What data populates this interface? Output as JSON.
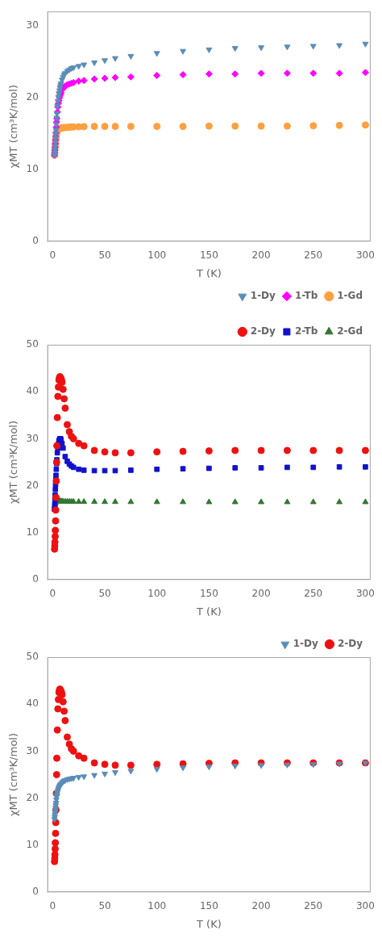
{
  "chart_data": [
    {
      "type": "scatter",
      "xlabel": "T (K)",
      "ylabel": "χMT (cm³K/mol)",
      "xlim": [
        -5,
        305
      ],
      "ylim": [
        0,
        32
      ],
      "xticks": [
        0,
        50,
        100,
        150,
        200,
        250,
        300
      ],
      "yticks": [
        0,
        10,
        20,
        30
      ],
      "grid": false,
      "legend": "lower right",
      "series": [
        {
          "name": "1-Dy",
          "color": "#5B8DB8",
          "marker": "triangle_down",
          "x": [
            1.8,
            2.0,
            2.2,
            2.4,
            2.6,
            2.8,
            3.0,
            3.2,
            3.5,
            3.8,
            4.0,
            4.5,
            5.0,
            5.5,
            6.0,
            6.5,
            7.0,
            7.5,
            8.0,
            9.0,
            10.0,
            11.0,
            12.0,
            14.0,
            16.0,
            18.0,
            20.0,
            25.0,
            30.0,
            40.0,
            50.0,
            60.0,
            75.0,
            100.0,
            125.0,
            150.0,
            175.0,
            200.0,
            225.0,
            250.0,
            275.0,
            300.0
          ],
          "values": [
            12.0,
            12.3,
            12.7,
            13.2,
            13.8,
            14.4,
            15.0,
            15.5,
            16.3,
            17.2,
            17.8,
            18.8,
            19.5,
            20.1,
            20.6,
            21.0,
            21.4,
            21.7,
            22.0,
            22.5,
            22.9,
            23.2,
            23.4,
            23.7,
            23.9,
            24.1,
            24.2,
            24.4,
            24.6,
            24.9,
            25.2,
            25.5,
            25.8,
            26.2,
            26.5,
            26.7,
            26.9,
            27.0,
            27.1,
            27.2,
            27.3,
            27.5
          ]
        },
        {
          "name": "1-Tb",
          "color": "#FF00FF",
          "marker": "diamond",
          "x": [
            1.8,
            2.0,
            2.2,
            2.4,
            2.6,
            2.8,
            3.0,
            3.2,
            3.5,
            3.8,
            4.0,
            4.5,
            5.0,
            5.5,
            6.0,
            6.5,
            7.0,
            7.5,
            8.0,
            9.0,
            10.0,
            11.0,
            12.0,
            14.0,
            16.0,
            18.0,
            20.0,
            25.0,
            30.0,
            40.0,
            50.0,
            60.0,
            75.0,
            100.0,
            125.0,
            150.0,
            175.0,
            200.0,
            225.0,
            250.0,
            275.0,
            300.0
          ],
          "values": [
            12.0,
            12.3,
            12.7,
            13.1,
            13.6,
            14.1,
            14.6,
            15.1,
            15.9,
            16.6,
            17.1,
            18.0,
            18.7,
            19.2,
            19.6,
            20.0,
            20.3,
            20.5,
            20.7,
            21.1,
            21.3,
            21.5,
            21.6,
            21.8,
            21.9,
            22.0,
            22.1,
            22.3,
            22.4,
            22.6,
            22.7,
            22.8,
            22.9,
            23.1,
            23.2,
            23.3,
            23.3,
            23.4,
            23.4,
            23.4,
            23.4,
            23.5
          ]
        },
        {
          "name": "1-Gd",
          "color": "#FFA040",
          "marker": "circle",
          "x": [
            1.8,
            2.0,
            2.2,
            2.4,
            2.6,
            2.8,
            3.0,
            3.2,
            3.5,
            3.8,
            4.0,
            4.5,
            5.0,
            5.5,
            6.0,
            6.5,
            7.0,
            7.5,
            8.0,
            9.0,
            10.0,
            11.0,
            12.0,
            14.0,
            16.0,
            18.0,
            20.0,
            25.0,
            30.0,
            40.0,
            50.0,
            60.0,
            75.0,
            100.0,
            125.0,
            150.0,
            175.0,
            200.0,
            225.0,
            250.0,
            275.0,
            300.0
          ],
          "values": [
            12.0,
            12.3,
            12.7,
            13.1,
            13.5,
            13.9,
            14.2,
            14.5,
            14.9,
            15.1,
            15.2,
            15.4,
            15.5,
            15.6,
            15.65,
            15.7,
            15.72,
            15.75,
            15.77,
            15.8,
            15.82,
            15.84,
            15.85,
            15.87,
            15.9,
            15.92,
            15.93,
            15.95,
            15.97,
            16.0,
            16.0,
            16.0,
            16.0,
            16.0,
            16.0,
            16.05,
            16.05,
            16.05,
            16.05,
            16.1,
            16.15,
            16.2
          ]
        }
      ]
    },
    {
      "type": "scatter",
      "xlabel": "T (K)",
      "ylabel": "χMT (cm³K/mol)",
      "xlim": [
        -5,
        305
      ],
      "ylim": [
        0,
        50
      ],
      "xticks": [
        0,
        50,
        100,
        150,
        200,
        250,
        300
      ],
      "yticks": [
        0,
        10,
        20,
        30,
        40,
        50
      ],
      "grid": false,
      "legend": "upper right",
      "series": [
        {
          "name": "2-Dy",
          "color": "#EE1111",
          "marker": "circle",
          "x": [
            1.8,
            2.0,
            2.2,
            2.4,
            2.6,
            2.8,
            3.0,
            3.2,
            3.5,
            3.8,
            4.0,
            4.5,
            5.0,
            5.5,
            6.0,
            6.5,
            7.0,
            7.5,
            8.0,
            8.5,
            9.0,
            10.0,
            11.0,
            12.0,
            14.0,
            16.0,
            18.0,
            20.0,
            25.0,
            30.0,
            40.0,
            50.0,
            60.0,
            75.0,
            100.0,
            125.0,
            150.0,
            175.0,
            200.0,
            225.0,
            250.0,
            275.0,
            300.0
          ],
          "values": [
            6.5,
            7.2,
            8.0,
            9.2,
            10.5,
            12.5,
            14.8,
            17.5,
            21.0,
            25.0,
            28.5,
            34.5,
            39.0,
            41.0,
            42.5,
            43.0,
            43.2,
            43.0,
            42.8,
            42.5,
            42.0,
            40.5,
            38.5,
            36.5,
            33.0,
            31.5,
            30.5,
            30.0,
            29.0,
            28.5,
            27.5,
            27.2,
            27.0,
            27.0,
            27.2,
            27.3,
            27.4,
            27.5,
            27.5,
            27.5,
            27.5,
            27.5,
            27.5
          ]
        },
        {
          "name": "2-Tb",
          "color": "#1111CC",
          "marker": "square",
          "x": [
            1.8,
            2.0,
            2.2,
            2.4,
            2.6,
            2.8,
            3.0,
            3.2,
            3.5,
            3.8,
            4.0,
            4.5,
            5.0,
            5.5,
            6.0,
            6.5,
            7.0,
            7.5,
            8.0,
            9.0,
            10.0,
            12.0,
            14.0,
            16.0,
            18.0,
            20.0,
            25.0,
            30.0,
            40.0,
            50.0,
            60.0,
            75.0,
            100.0,
            125.0,
            150.0,
            175.0,
            200.0,
            225.0,
            250.0,
            275.0,
            300.0
          ],
          "values": [
            15.0,
            16.0,
            17.0,
            18.0,
            19.2,
            20.2,
            21.2,
            22.2,
            23.5,
            24.7,
            25.5,
            27.0,
            28.0,
            28.8,
            29.5,
            29.8,
            30.0,
            30.0,
            29.8,
            29.0,
            28.0,
            26.2,
            25.2,
            24.6,
            24.2,
            23.9,
            23.5,
            23.3,
            23.2,
            23.2,
            23.2,
            23.3,
            23.5,
            23.6,
            23.7,
            23.8,
            23.8,
            23.9,
            23.9,
            24.0,
            24.0
          ]
        },
        {
          "name": "2-Gd",
          "color": "#337733",
          "marker": "triangle_up",
          "x": [
            1.8,
            2.0,
            2.2,
            2.4,
            2.6,
            2.8,
            3.0,
            3.2,
            3.5,
            3.8,
            4.0,
            4.5,
            5.0,
            5.5,
            6.0,
            6.5,
            7.0,
            7.5,
            8.0,
            9.0,
            10.0,
            12.0,
            14.0,
            16.0,
            18.0,
            20.0,
            25.0,
            30.0,
            40.0,
            50.0,
            60.0,
            75.0,
            100.0,
            125.0,
            150.0,
            175.0,
            200.0,
            225.0,
            250.0,
            275.0,
            300.0
          ],
          "values": [
            15.0,
            15.5,
            15.9,
            16.2,
            16.4,
            16.5,
            16.6,
            16.65,
            16.7,
            16.72,
            16.73,
            16.73,
            16.72,
            16.71,
            16.7,
            16.7,
            16.7,
            16.7,
            16.68,
            16.67,
            16.65,
            16.63,
            16.62,
            16.61,
            16.6,
            16.6,
            16.58,
            16.57,
            16.56,
            16.55,
            16.55,
            16.54,
            16.53,
            16.52,
            16.51,
            16.51,
            16.51,
            16.51,
            16.51,
            16.51,
            16.51
          ]
        }
      ]
    },
    {
      "type": "scatter",
      "xlabel": "T (K)",
      "ylabel": "χMT (cm³K/mol)",
      "xlim": [
        -5,
        305
      ],
      "ylim": [
        0,
        50
      ],
      "xticks": [
        0,
        50,
        100,
        150,
        200,
        250,
        300
      ],
      "yticks": [
        0,
        10,
        20,
        30,
        40,
        50
      ],
      "grid": false,
      "legend": "upper right",
      "series": [
        {
          "name": "1-Dy",
          "color": "#5B8DB8",
          "marker": "triangle_down",
          "x": [
            1.8,
            2.0,
            2.2,
            2.4,
            2.6,
            2.8,
            3.0,
            3.2,
            3.5,
            3.8,
            4.0,
            4.5,
            5.0,
            5.5,
            6.0,
            6.5,
            7.0,
            7.5,
            8.0,
            9.0,
            10.0,
            11.0,
            12.0,
            14.0,
            16.0,
            18.0,
            20.0,
            25.0,
            30.0,
            40.0,
            50.0,
            60.0,
            75.0,
            100.0,
            125.0,
            150.0,
            175.0,
            200.0,
            225.0,
            250.0,
            275.0,
            300.0
          ],
          "values": [
            15.5,
            16.0,
            16.5,
            17.0,
            17.5,
            18.0,
            18.5,
            19.0,
            19.7,
            20.3,
            20.7,
            21.2,
            21.6,
            22.0,
            22.2,
            22.5,
            22.7,
            22.9,
            23.0,
            23.3,
            23.5,
            23.7,
            23.8,
            24.0,
            24.1,
            24.2,
            24.3,
            24.5,
            24.6,
            24.9,
            25.2,
            25.5,
            25.8,
            26.2,
            26.5,
            26.7,
            26.9,
            27.0,
            27.1,
            27.2,
            27.3,
            27.5
          ]
        },
        {
          "name": "2-Dy",
          "color": "#EE1111",
          "marker": "circle",
          "x": [
            1.8,
            2.0,
            2.2,
            2.4,
            2.6,
            2.8,
            3.0,
            3.2,
            3.5,
            3.8,
            4.0,
            4.5,
            5.0,
            5.5,
            6.0,
            6.5,
            7.0,
            7.5,
            8.0,
            8.5,
            9.0,
            10.0,
            11.0,
            12.0,
            14.0,
            16.0,
            18.0,
            20.0,
            25.0,
            30.0,
            40.0,
            50.0,
            60.0,
            75.0,
            100.0,
            125.0,
            150.0,
            175.0,
            200.0,
            225.0,
            250.0,
            275.0,
            300.0
          ],
          "values": [
            6.5,
            7.2,
            8.0,
            9.2,
            10.5,
            12.5,
            14.8,
            17.5,
            21.0,
            25.0,
            28.5,
            34.5,
            39.0,
            41.0,
            42.5,
            43.0,
            43.2,
            43.0,
            42.8,
            42.5,
            42.0,
            40.5,
            38.5,
            36.5,
            33.0,
            31.5,
            30.5,
            30.0,
            29.0,
            28.5,
            27.5,
            27.2,
            27.0,
            27.0,
            27.2,
            27.3,
            27.4,
            27.5,
            27.5,
            27.5,
            27.5,
            27.5,
            27.5
          ]
        }
      ]
    }
  ]
}
